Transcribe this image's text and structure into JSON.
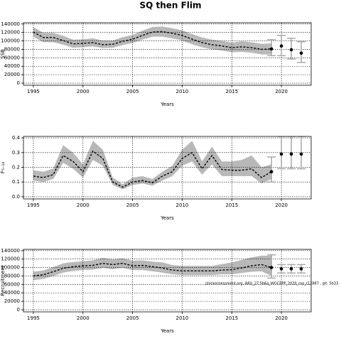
{
  "title": "SQ then Flim",
  "chart_data": [
    {
      "type": "line",
      "ylabel": "SSB",
      "xlabel": "Years",
      "x": [
        1995,
        1996,
        1997,
        1998,
        1999,
        2000,
        2001,
        2002,
        2003,
        2004,
        2005,
        2006,
        2007,
        2008,
        2009,
        2010,
        2011,
        2012,
        2013,
        2014,
        2015,
        2016,
        2017,
        2018,
        2019
      ],
      "values": [
        121000,
        108000,
        108000,
        101000,
        93000,
        94000,
        96000,
        91000,
        92000,
        99000,
        104000,
        113000,
        121000,
        122000,
        118000,
        113000,
        104000,
        96000,
        91000,
        88000,
        84000,
        86000,
        84000,
        80000,
        81000
      ],
      "lower": [
        110000,
        97000,
        97000,
        91000,
        84000,
        85000,
        87000,
        83000,
        84000,
        90000,
        95000,
        103000,
        110000,
        110000,
        106000,
        101000,
        92000,
        85000,
        80000,
        77000,
        73000,
        74000,
        72000,
        68000,
        68000
      ],
      "upper": [
        133000,
        119000,
        119000,
        112000,
        103000,
        104000,
        106000,
        101000,
        101000,
        109000,
        114000,
        124000,
        133000,
        134000,
        130000,
        125000,
        116000,
        108000,
        103000,
        100000,
        96000,
        99000,
        97000,
        93000,
        94000
      ],
      "projection": {
        "x": [
          2019,
          2020,
          2021,
          2022
        ],
        "values": [
          81000,
          88000,
          79000,
          71000
        ],
        "lower": [
          65000,
          65000,
          57000,
          49000
        ],
        "upper": [
          103000,
          113000,
          106000,
          98000
        ]
      },
      "xlim": [
        1994,
        2023
      ],
      "ylim": [
        -5000,
        143000
      ],
      "xticks": [
        1995,
        2000,
        2005,
        2010,
        2015,
        2020
      ],
      "yticks": [
        0,
        20000,
        40000,
        60000,
        80000,
        100000,
        120000,
        140000
      ],
      "grid": true,
      "band_color": "#b8b8b8",
      "line_color": "#000000",
      "error_color": "#a8a8a8"
    },
    {
      "type": "line",
      "ylabel": "F₅₋₁₄",
      "xlabel": "Years",
      "x": [
        1995,
        1996,
        1997,
        1998,
        1999,
        2000,
        2001,
        2002,
        2003,
        2004,
        2005,
        2006,
        2007,
        2008,
        2009,
        2010,
        2011,
        2012,
        2013,
        2014,
        2015,
        2016,
        2017,
        2018,
        2019
      ],
      "values": [
        0.14,
        0.13,
        0.15,
        0.28,
        0.24,
        0.17,
        0.31,
        0.26,
        0.1,
        0.065,
        0.1,
        0.11,
        0.095,
        0.14,
        0.17,
        0.26,
        0.3,
        0.19,
        0.28,
        0.185,
        0.18,
        0.18,
        0.19,
        0.13,
        0.17
      ],
      "lower": [
        0.11,
        0.1,
        0.12,
        0.23,
        0.19,
        0.13,
        0.25,
        0.21,
        0.08,
        0.05,
        0.08,
        0.09,
        0.075,
        0.11,
        0.14,
        0.21,
        0.24,
        0.15,
        0.22,
        0.14,
        0.14,
        0.14,
        0.14,
        0.09,
        0.12
      ],
      "upper": [
        0.18,
        0.17,
        0.19,
        0.35,
        0.3,
        0.22,
        0.38,
        0.32,
        0.13,
        0.085,
        0.13,
        0.14,
        0.12,
        0.17,
        0.21,
        0.32,
        0.38,
        0.24,
        0.34,
        0.24,
        0.24,
        0.25,
        0.28,
        0.2,
        0.22
      ],
      "projection": {
        "x": [
          2019,
          2020,
          2021,
          2022
        ],
        "values": [
          0.17,
          0.29,
          0.29,
          0.29
        ],
        "lower": [
          0.1,
          0.19,
          0.19,
          0.19
        ],
        "upper": [
          0.27,
          0.41,
          0.41,
          0.41
        ]
      },
      "xlim": [
        1994,
        2023
      ],
      "ylim": [
        -0.015,
        0.41
      ],
      "xticks": [
        1995,
        2000,
        2005,
        2010,
        2015,
        2020
      ],
      "yticks": [
        {
          "value": 0,
          "label": "0.0"
        },
        0.1,
        0.2,
        0.3,
        0.4
      ],
      "grid": true,
      "band_color": "#b8b8b8",
      "line_color": "#000000",
      "error_color": "#a8a8a8"
    },
    {
      "type": "line",
      "ylabel": "Recruitment",
      "xlabel": "Years",
      "x": [
        1995,
        1996,
        1997,
        1998,
        1999,
        2000,
        2001,
        2002,
        2003,
        2004,
        2005,
        2006,
        2007,
        2008,
        2009,
        2010,
        2011,
        2012,
        2013,
        2014,
        2015,
        2016,
        2017,
        2018,
        2019
      ],
      "values": [
        80000,
        83000,
        90000,
        98000,
        102000,
        104000,
        105000,
        110000,
        107000,
        110000,
        104000,
        105000,
        102000,
        99000,
        94000,
        92000,
        92000,
        92000,
        92000,
        94000,
        95000,
        99000,
        104000,
        107000,
        100000
      ],
      "lower": [
        70000,
        73000,
        80000,
        88000,
        92000,
        94000,
        95000,
        99000,
        96000,
        99000,
        94000,
        94000,
        91000,
        88000,
        84000,
        82000,
        82000,
        82000,
        82000,
        84000,
        84000,
        87000,
        90000,
        91000,
        80000
      ],
      "upper": [
        90000,
        93000,
        101000,
        110000,
        113000,
        115000,
        117000,
        123000,
        119000,
        122000,
        116000,
        117000,
        114000,
        112000,
        106000,
        104000,
        104000,
        104000,
        104000,
        108000,
        112000,
        118000,
        124000,
        128000,
        128000
      ],
      "projection": {
        "x": [
          2019,
          2020,
          2021,
          2022
        ],
        "values": [
          100000,
          97000,
          97000,
          97000
        ],
        "lower": [
          75000,
          87000,
          87000,
          87000
        ],
        "upper": [
          130000,
          107000,
          107000,
          107000
        ]
      },
      "xlim": [
        1994,
        2023
      ],
      "ylim": [
        -5000,
        143000
      ],
      "xticks": [
        1995,
        2000,
        2005,
        2010,
        2015,
        2020
      ],
      "yticks": [
        0,
        20000,
        40000,
        60000,
        80000,
        100000,
        120000,
        140000
      ],
      "grid": true,
      "band_color": "#b8b8b8",
      "line_color": "#000000",
      "error_color": "#a8a8a8",
      "annotation": "stockassessment.org, ARU_27.5b6a_WGCEPP_2020_rnp_r12887 , git: 5b33"
    }
  ]
}
